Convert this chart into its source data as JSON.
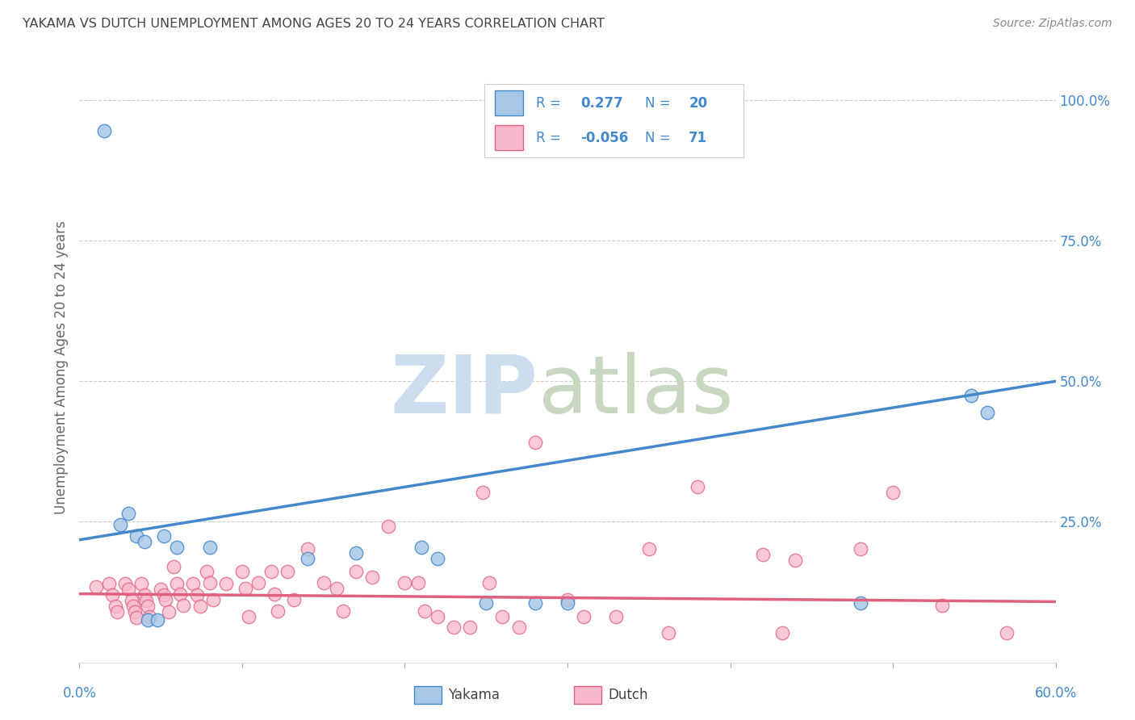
{
  "title": "YAKAMA VS DUTCH UNEMPLOYMENT AMONG AGES 20 TO 24 YEARS CORRELATION CHART",
  "source_text": "Source: ZipAtlas.com",
  "ylabel": "Unemployment Among Ages 20 to 24 years",
  "xlim": [
    0.0,
    0.6
  ],
  "ylim": [
    0.0,
    1.05
  ],
  "yakama_R": 0.277,
  "yakama_N": 20,
  "dutch_R": -0.056,
  "dutch_N": 71,
  "yakama_color": "#a8c8e8",
  "yakama_line_color": "#4488cc",
  "dutch_color": "#f8b8cc",
  "dutch_line_color": "#e06080",
  "watermark_zip_color": "#ccddf0",
  "watermark_atlas_color": "#c8d8c0",
  "background_color": "#ffffff",
  "grid_color": "#cccccc",
  "title_color": "#444444",
  "axis_label_color": "#666666",
  "tick_color_blue": "#4488cc",
  "legend_text_color": "#4488cc",
  "yakama_trendline_start_y": 0.218,
  "yakama_trendline_end_y": 0.5,
  "dutch_trendline_start_y": 0.122,
  "dutch_trendline_end_y": 0.108,
  "yakama_points": [
    [
      0.015,
      0.945
    ],
    [
      0.025,
      0.245
    ],
    [
      0.03,
      0.265
    ],
    [
      0.035,
      0.225
    ],
    [
      0.04,
      0.215
    ],
    [
      0.042,
      0.075
    ],
    [
      0.048,
      0.075
    ],
    [
      0.052,
      0.225
    ],
    [
      0.06,
      0.205
    ],
    [
      0.08,
      0.205
    ],
    [
      0.14,
      0.185
    ],
    [
      0.17,
      0.195
    ],
    [
      0.21,
      0.205
    ],
    [
      0.22,
      0.185
    ],
    [
      0.25,
      0.105
    ],
    [
      0.28,
      0.105
    ],
    [
      0.3,
      0.105
    ],
    [
      0.48,
      0.105
    ],
    [
      0.548,
      0.475
    ],
    [
      0.558,
      0.445
    ]
  ],
  "dutch_points": [
    [
      0.01,
      0.135
    ],
    [
      0.018,
      0.14
    ],
    [
      0.02,
      0.12
    ],
    [
      0.022,
      0.1
    ],
    [
      0.023,
      0.09
    ],
    [
      0.028,
      0.14
    ],
    [
      0.03,
      0.13
    ],
    [
      0.032,
      0.11
    ],
    [
      0.033,
      0.1
    ],
    [
      0.034,
      0.09
    ],
    [
      0.035,
      0.08
    ],
    [
      0.038,
      0.14
    ],
    [
      0.04,
      0.12
    ],
    [
      0.041,
      0.11
    ],
    [
      0.042,
      0.1
    ],
    [
      0.043,
      0.082
    ],
    [
      0.05,
      0.13
    ],
    [
      0.052,
      0.12
    ],
    [
      0.053,
      0.112
    ],
    [
      0.055,
      0.09
    ],
    [
      0.058,
      0.17
    ],
    [
      0.06,
      0.14
    ],
    [
      0.062,
      0.122
    ],
    [
      0.064,
      0.102
    ],
    [
      0.07,
      0.14
    ],
    [
      0.072,
      0.12
    ],
    [
      0.074,
      0.1
    ],
    [
      0.078,
      0.162
    ],
    [
      0.08,
      0.142
    ],
    [
      0.082,
      0.112
    ],
    [
      0.09,
      0.14
    ],
    [
      0.1,
      0.162
    ],
    [
      0.102,
      0.132
    ],
    [
      0.104,
      0.082
    ],
    [
      0.11,
      0.142
    ],
    [
      0.118,
      0.162
    ],
    [
      0.12,
      0.122
    ],
    [
      0.122,
      0.092
    ],
    [
      0.128,
      0.162
    ],
    [
      0.132,
      0.112
    ],
    [
      0.14,
      0.202
    ],
    [
      0.15,
      0.142
    ],
    [
      0.158,
      0.132
    ],
    [
      0.162,
      0.092
    ],
    [
      0.17,
      0.162
    ],
    [
      0.18,
      0.152
    ],
    [
      0.19,
      0.242
    ],
    [
      0.2,
      0.142
    ],
    [
      0.208,
      0.142
    ],
    [
      0.212,
      0.092
    ],
    [
      0.22,
      0.082
    ],
    [
      0.23,
      0.062
    ],
    [
      0.24,
      0.062
    ],
    [
      0.248,
      0.302
    ],
    [
      0.252,
      0.142
    ],
    [
      0.26,
      0.082
    ],
    [
      0.27,
      0.062
    ],
    [
      0.28,
      0.392
    ],
    [
      0.3,
      0.112
    ],
    [
      0.31,
      0.082
    ],
    [
      0.33,
      0.082
    ],
    [
      0.35,
      0.202
    ],
    [
      0.362,
      0.052
    ],
    [
      0.38,
      0.312
    ],
    [
      0.42,
      0.192
    ],
    [
      0.432,
      0.052
    ],
    [
      0.44,
      0.182
    ],
    [
      0.48,
      0.202
    ],
    [
      0.5,
      0.302
    ],
    [
      0.53,
      0.102
    ],
    [
      0.57,
      0.052
    ]
  ]
}
